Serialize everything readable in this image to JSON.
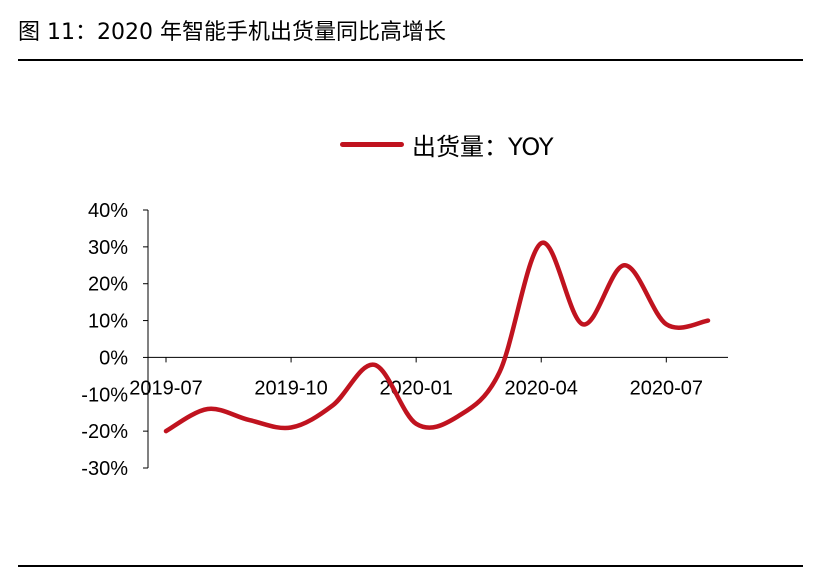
{
  "title": "图 11：2020 年智能手机出货量同比高增长",
  "colors": {
    "series": "#c0131f",
    "axis": "#000000"
  },
  "chart_data": {
    "type": "line",
    "title": "",
    "xlabel": "",
    "ylabel": "",
    "legend_position": "top",
    "grid": false,
    "ylim": [
      -30,
      40
    ],
    "y_ticks": [
      40,
      30,
      20,
      10,
      0,
      -10,
      -20,
      -30
    ],
    "y_tick_labels": [
      "40%",
      "30%",
      "20%",
      "10%",
      "0%",
      "-10%",
      "-20%",
      "-30%"
    ],
    "x_tick_labels": [
      "2019-07",
      "2019-10",
      "2020-01",
      "2020-04",
      "2020-07"
    ],
    "x": [
      "2019-07",
      "2019-08",
      "2019-09",
      "2019-10",
      "2019-11",
      "2019-12",
      "2020-01",
      "2020-02",
      "2020-03",
      "2020-04",
      "2020-05",
      "2020-06",
      "2020-07",
      "2020-08"
    ],
    "series": [
      {
        "name": "出货量：YOY",
        "values": [
          -20,
          -14,
          -17,
          -19,
          -13,
          -2,
          -18,
          -16,
          -4,
          31,
          9,
          25,
          9,
          10
        ]
      }
    ]
  }
}
